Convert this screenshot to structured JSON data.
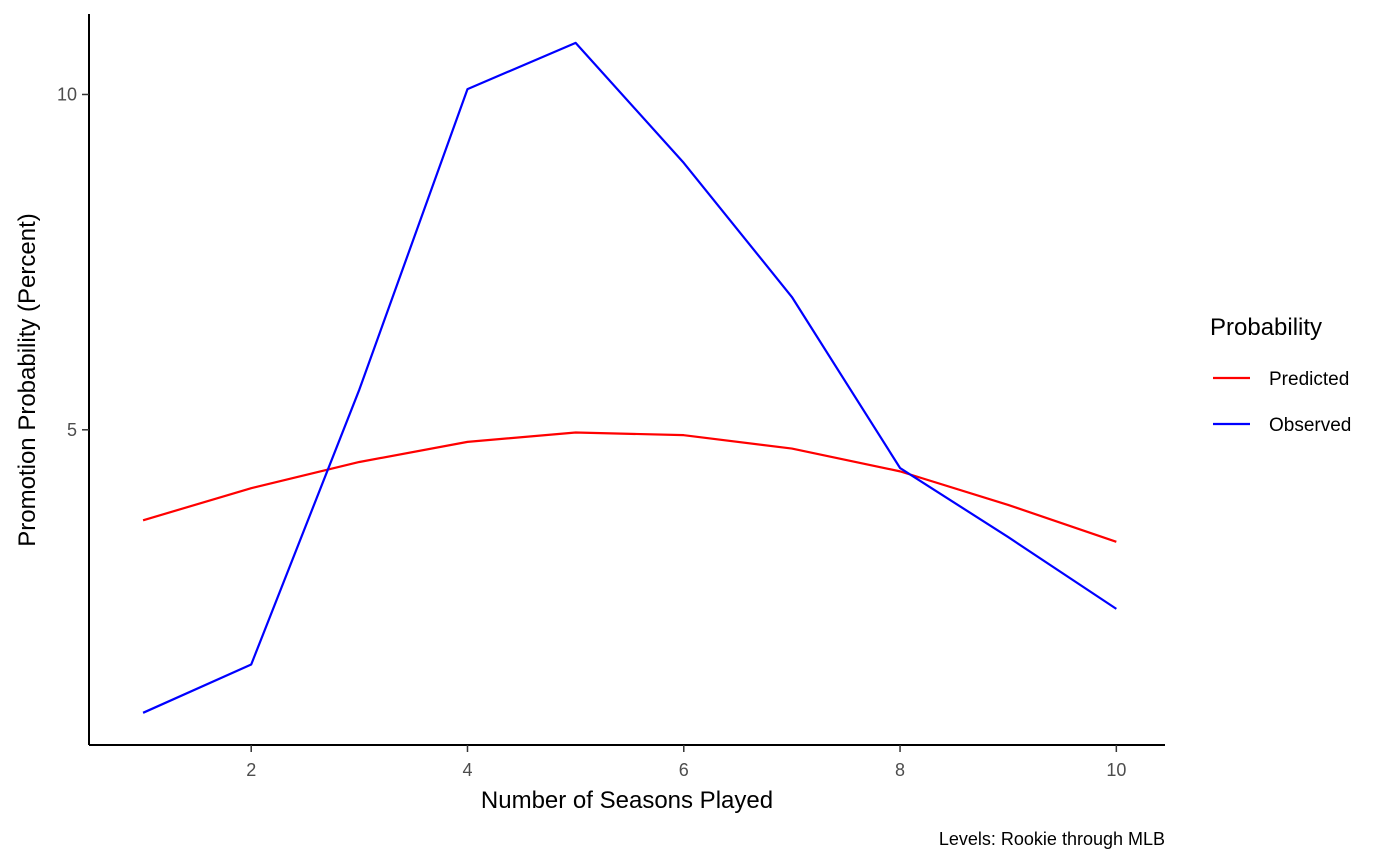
{
  "chart_data": {
    "type": "line",
    "title": "",
    "xlabel": "Number of Seasons Played",
    "ylabel": "Promotion Probability (Percent)",
    "caption": "Levels: Rookie through MLB",
    "x": [
      1,
      2,
      3,
      4,
      5,
      6,
      7,
      8,
      9,
      10
    ],
    "xlim": [
      0.5,
      10.45
    ],
    "ylim": [
      0.3,
      11.2
    ],
    "xticks": [
      2,
      4,
      6,
      8,
      10
    ],
    "yticks": [
      5,
      10
    ],
    "grid": false,
    "legend": {
      "title": "Probability",
      "position": "right"
    },
    "series": [
      {
        "name": "Predicted",
        "color": "#ff0000",
        "values": [
          3.65,
          4.13,
          4.52,
          4.82,
          4.96,
          4.92,
          4.72,
          4.38,
          3.88,
          3.33
        ]
      },
      {
        "name": "Observed",
        "color": "#0000ff",
        "values": [
          0.78,
          1.5,
          5.6,
          10.08,
          10.77,
          8.98,
          6.98,
          4.43,
          3.4,
          2.33
        ]
      }
    ]
  }
}
